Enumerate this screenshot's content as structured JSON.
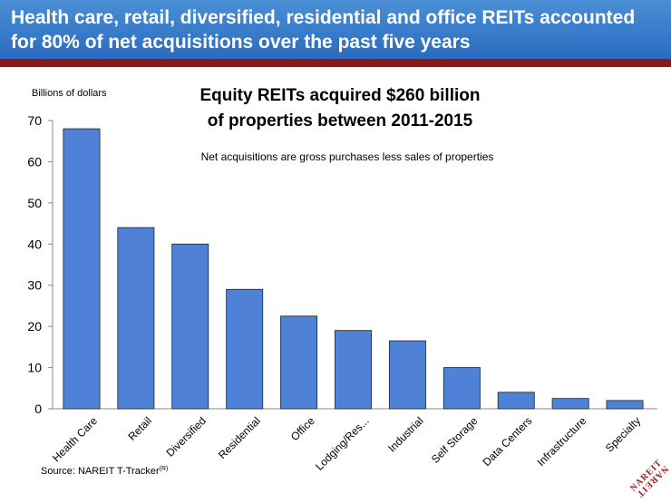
{
  "header": {
    "title": "Health care, retail, diversified, residential and office REITs accounted for 80% of net acquisitions over the past five years"
  },
  "colors": {
    "header": "#2f74c8",
    "header_rule": "#8a1a1a",
    "bar": "#4f81d6",
    "logo": "#a01c22"
  },
  "chart_data": {
    "type": "bar",
    "title_lines": [
      "Equity REITs acquired $260 billion",
      "of properties between 2011-2015"
    ],
    "subtitle": "Net acquisitions are gross purchases less sales of properties",
    "units_label": "Billions of dollars",
    "categories": [
      "Health Care",
      "Retail",
      "Diversified",
      "Residential",
      "Office",
      "Lodging/Res...",
      "Industrial",
      "Self Storage",
      "Data Centers",
      "Infrastructure",
      "Specialty"
    ],
    "values": [
      68,
      44,
      40,
      29,
      22.5,
      19,
      16.5,
      10,
      4,
      2.5,
      2
    ],
    "ylim": [
      0,
      70
    ],
    "yticks": [
      0,
      10,
      20,
      30,
      40,
      50,
      60,
      70
    ],
    "grid": false,
    "legend": "none"
  },
  "source": {
    "label": "Source: NAREIT T-Tracker",
    "superscript": "(R)"
  },
  "logo": {
    "line1": "NAREIT",
    "line2": "NAREIT"
  }
}
